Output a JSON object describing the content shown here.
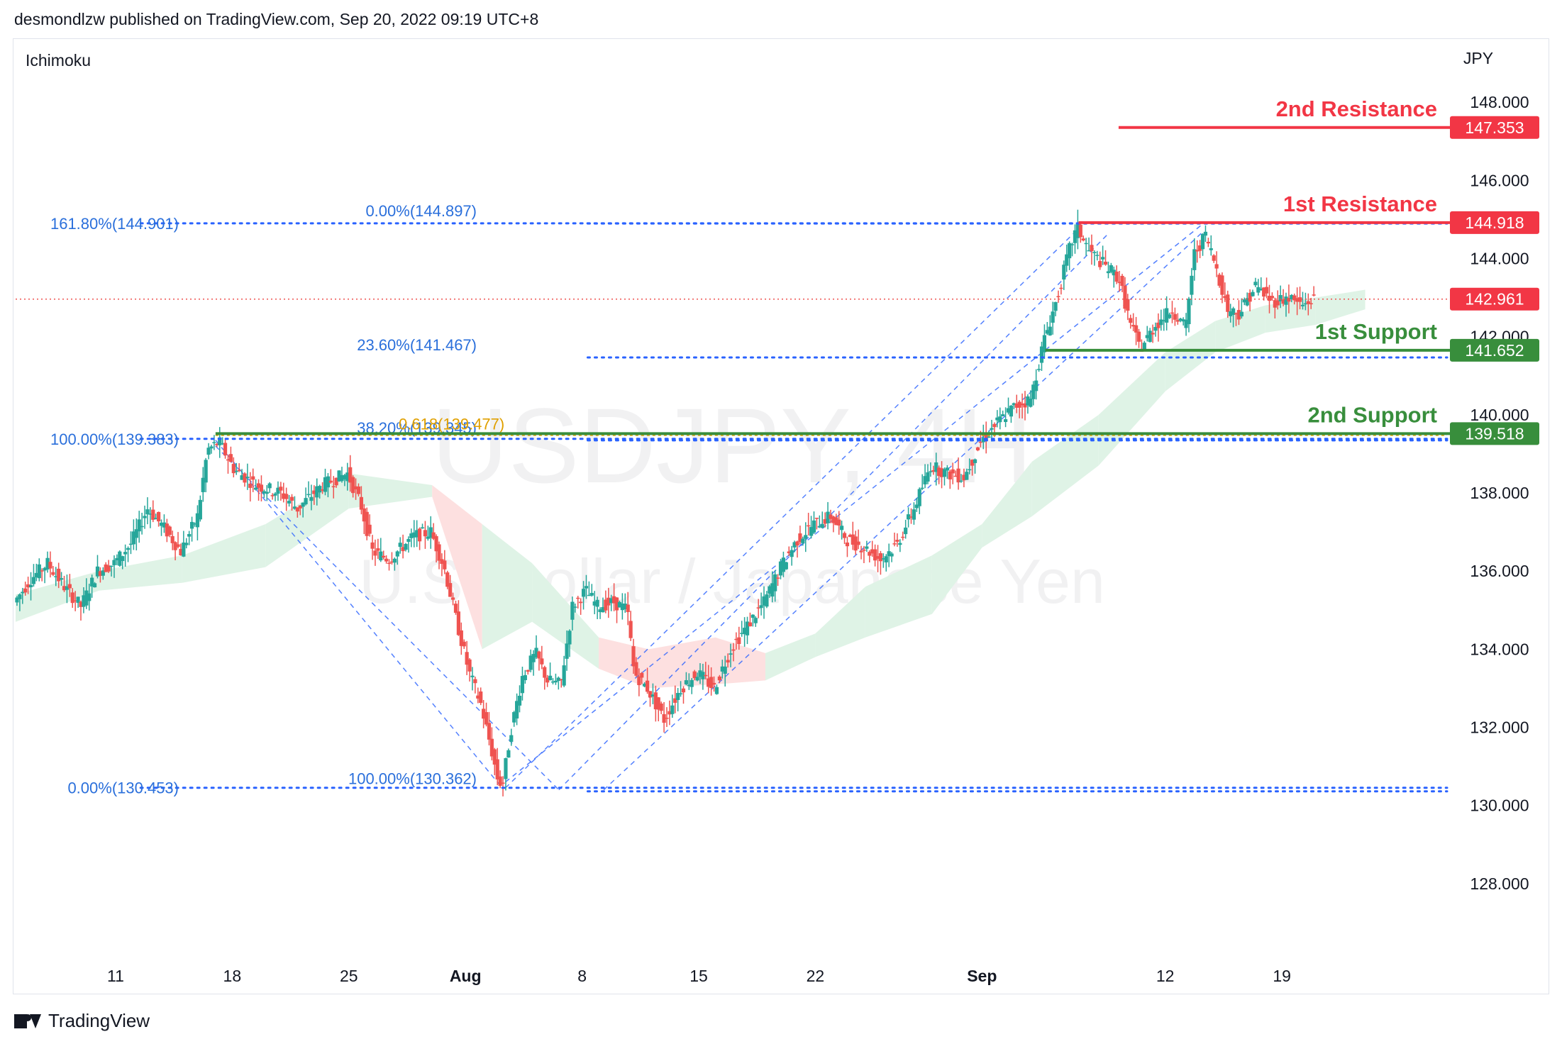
{
  "header": {
    "text": "desmondlzw published on TradingView.com, Sep 20, 2022 09:19 UTC+8"
  },
  "footer": {
    "brand": "TradingView"
  },
  "chart_data": {
    "type": "candlestick",
    "indicator": "Ichimoku",
    "currency": "JPY",
    "watermark": {
      "symbol": "USDJPY, 4H",
      "description": "U.S. Dollar / Japanese Yen"
    },
    "ylim": [
      126.2,
      149.6
    ],
    "y_ticks": [
      128.0,
      130.0,
      132.0,
      134.0,
      136.0,
      138.0,
      140.0,
      142.0,
      144.0,
      146.0,
      148.0
    ],
    "x_ticks": [
      {
        "label": "11",
        "day": 11,
        "bold": false
      },
      {
        "label": "18",
        "day": 18,
        "bold": false
      },
      {
        "label": "25",
        "day": 25,
        "bold": false
      },
      {
        "label": "Aug",
        "day": 32,
        "bold": true
      },
      {
        "label": "8",
        "day": 39,
        "bold": false
      },
      {
        "label": "15",
        "day": 46,
        "bold": false
      },
      {
        "label": "22",
        "day": 53,
        "bold": false
      },
      {
        "label": "Sep",
        "day": 63,
        "bold": true
      },
      {
        "label": "12",
        "day": 74,
        "bold": false
      },
      {
        "label": "19",
        "day": 81,
        "bold": false
      }
    ],
    "x_range_days": [
      5,
      91
    ],
    "price_path": [
      [
        5.0,
        135.2
      ],
      [
        6.0,
        135.8
      ],
      [
        7.0,
        136.2
      ],
      [
        8.0,
        135.6
      ],
      [
        9.0,
        135.1
      ],
      [
        10.0,
        136.0
      ],
      [
        11.0,
        136.2
      ],
      [
        12.0,
        136.7
      ],
      [
        13.0,
        137.6
      ],
      [
        14.0,
        137.1
      ],
      [
        15.0,
        136.5
      ],
      [
        16.0,
        137.4
      ],
      [
        16.6,
        139.1
      ],
      [
        17.3,
        139.3
      ],
      [
        18.2,
        138.6
      ],
      [
        19.5,
        138.2
      ],
      [
        21.0,
        138.0
      ],
      [
        22.0,
        137.6
      ],
      [
        23.5,
        138.2
      ],
      [
        25.0,
        138.5
      ],
      [
        25.8,
        137.7
      ],
      [
        26.5,
        136.5
      ],
      [
        27.5,
        136.3
      ],
      [
        29.0,
        136.9
      ],
      [
        30.0,
        137.0
      ],
      [
        30.8,
        136.1
      ],
      [
        31.5,
        134.8
      ],
      [
        32.3,
        133.4
      ],
      [
        33.0,
        132.6
      ],
      [
        33.6,
        131.5
      ],
      [
        34.0,
        130.7
      ],
      [
        34.3,
        130.5
      ],
      [
        34.8,
        131.9
      ],
      [
        35.5,
        133.3
      ],
      [
        36.3,
        133.9
      ],
      [
        37.0,
        133.2
      ],
      [
        37.8,
        133.1
      ],
      [
        38.5,
        135.1
      ],
      [
        39.3,
        135.5
      ],
      [
        40.0,
        135.1
      ],
      [
        41.0,
        135.2
      ],
      [
        41.8,
        135.0
      ],
      [
        42.2,
        133.4
      ],
      [
        43.0,
        133.0
      ],
      [
        44.0,
        132.2
      ],
      [
        45.0,
        133.0
      ],
      [
        46.0,
        133.4
      ],
      [
        47.0,
        133.0
      ],
      [
        48.0,
        134.0
      ],
      [
        49.0,
        134.6
      ],
      [
        50.0,
        135.2
      ],
      [
        51.0,
        136.1
      ],
      [
        52.0,
        136.8
      ],
      [
        53.0,
        137.2
      ],
      [
        54.0,
        137.4
      ],
      [
        55.0,
        136.8
      ],
      [
        56.0,
        136.6
      ],
      [
        57.0,
        136.3
      ],
      [
        58.0,
        136.7
      ],
      [
        59.0,
        137.6
      ],
      [
        60.0,
        138.7
      ],
      [
        61.0,
        138.5
      ],
      [
        62.0,
        138.4
      ],
      [
        63.0,
        139.3
      ],
      [
        64.0,
        139.8
      ],
      [
        65.0,
        140.2
      ],
      [
        66.0,
        140.4
      ],
      [
        66.8,
        141.9
      ],
      [
        67.6,
        143.0
      ],
      [
        68.3,
        144.2
      ],
      [
        68.8,
        144.8
      ],
      [
        69.5,
        144.2
      ],
      [
        70.5,
        143.8
      ],
      [
        71.3,
        143.5
      ],
      [
        72.0,
        142.3
      ],
      [
        72.6,
        141.7
      ],
      [
        73.5,
        142.3
      ],
      [
        74.5,
        142.7
      ],
      [
        75.3,
        142.2
      ],
      [
        75.8,
        144.1
      ],
      [
        76.5,
        144.6
      ],
      [
        77.2,
        143.7
      ],
      [
        77.8,
        142.7
      ],
      [
        78.5,
        142.6
      ],
      [
        79.5,
        143.3
      ],
      [
        80.5,
        142.9
      ],
      [
        81.5,
        143.0
      ],
      [
        82.3,
        142.8
      ],
      [
        83.0,
        142.96
      ]
    ],
    "cloud_band": [
      [
        5.0,
        134.7,
        135.4
      ],
      [
        10.0,
        135.5,
        136.0
      ],
      [
        15.0,
        135.7,
        136.4
      ],
      [
        20.0,
        136.1,
        137.2
      ],
      [
        25.0,
        137.6,
        138.5
      ],
      [
        30.0,
        137.9,
        138.2
      ],
      [
        33.0,
        134.0,
        137.2
      ],
      [
        36.0,
        134.7,
        136.2
      ],
      [
        40.0,
        133.5,
        134.3
      ],
      [
        43.0,
        133.0,
        134.0
      ],
      [
        47.0,
        133.1,
        134.3
      ],
      [
        50.0,
        133.2,
        133.9
      ],
      [
        53.0,
        133.8,
        134.4
      ],
      [
        56.0,
        134.3,
        135.6
      ],
      [
        60.0,
        134.9,
        136.4
      ],
      [
        63.0,
        136.6,
        137.2
      ],
      [
        66.0,
        137.4,
        138.8
      ],
      [
        70.0,
        138.7,
        140.0
      ],
      [
        74.0,
        140.6,
        141.6
      ],
      [
        77.0,
        141.6,
        142.4
      ],
      [
        80.0,
        142.1,
        142.8
      ],
      [
        83.0,
        142.3,
        143.0
      ],
      [
        86.0,
        142.7,
        143.2
      ]
    ],
    "fib_levels_left": [
      {
        "label": "161.80%(144.901)",
        "price": 144.901,
        "start_day": 12.5
      },
      {
        "label": "100.00%(139.383)",
        "price": 139.383,
        "start_day": 12.5
      },
      {
        "label": "0.00%(130.453)",
        "price": 130.453,
        "start_day": 12.5
      }
    ],
    "fib_levels_mid": [
      {
        "label": "0.00%(144.897)",
        "price": 144.897,
        "start_day": 33.8
      },
      {
        "label": "23.60%(141.467)",
        "price": 141.467,
        "start_day": 33.8
      },
      {
        "label": "38.20%(139.345)",
        "price": 139.345,
        "start_day": 33.8
      },
      {
        "label": "100.00%(130.362)",
        "price": 130.362,
        "start_day": 33.8
      }
    ],
    "golden_ratio": {
      "label": "0.618(139.477)",
      "price": 139.477
    },
    "resistance": [
      {
        "label": "2nd Resistance",
        "price": 147.353,
        "price_label": "147.353",
        "start_day": 71.2
      },
      {
        "label": "1st Resistance",
        "price": 144.918,
        "price_label": "144.918",
        "start_day": 68.8
      }
    ],
    "support": [
      {
        "label": "1st Support",
        "price": 141.652,
        "price_label": "141.652",
        "start_day": 66.8
      },
      {
        "label": "2nd Support",
        "price": 139.518,
        "price_label": "139.518",
        "start_day": 17.0
      }
    ],
    "current_price": {
      "price": 142.961,
      "price_label": "142.961"
    },
    "colors": {
      "up": "#26a69a",
      "down": "#ef5350",
      "fib": "#2962ff",
      "fib_text": "#2a6fdb",
      "resistance": "#f23645",
      "support": "#388e3c",
      "golden": "#e0a000",
      "cloud_up": "#dff3e6",
      "cloud_down": "#fde0e0",
      "grid_text": "#131722"
    }
  }
}
